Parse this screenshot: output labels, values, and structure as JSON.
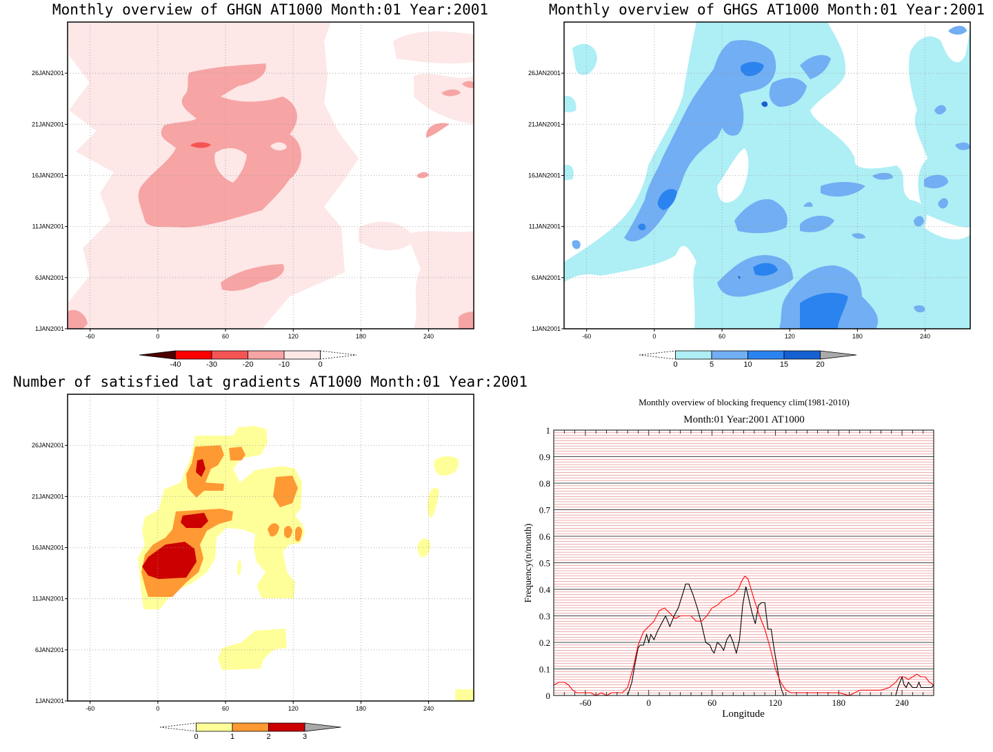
{
  "palettes": {
    "neg": [
      "#4d0000",
      "#ff0000",
      "#f55454",
      "#f7a4a4",
      "#fde7e7"
    ],
    "pos": [
      "#aeeef5",
      "#71aef3",
      "#2b83ef",
      "#1560d0",
      "#aaaaaa"
    ],
    "cnt": [
      "#ffff99",
      "#ff9933",
      "#cc0000",
      "#aaaaaa"
    ]
  },
  "chart_data": [
    {
      "id": "ghgn",
      "type": "heatmap",
      "title": "Monthly overview of GHGN AT1000 Month:01 Year:2001",
      "x_ticks": [
        "-60",
        "0",
        "60",
        "120",
        "180",
        "240"
      ],
      "y_ticks": [
        "1JAN2001",
        "6JAN2001",
        "11JAN2001",
        "16JAN2001",
        "21JAN2001",
        "26JAN2001"
      ],
      "xlim": [
        -80,
        280
      ],
      "ylim": [
        "1JAN2001",
        "31JAN2001"
      ],
      "colorbar": {
        "labels": [
          "-40",
          "-30",
          "-20",
          "-10",
          "0"
        ],
        "colors": [
          "#4d0000",
          "#ff0000",
          "#f55454",
          "#f7a4a4",
          "#fde7e7"
        ]
      }
    },
    {
      "id": "ghgs",
      "type": "heatmap",
      "title": "Monthly overview of GHGS AT1000 Month:01 Year:2001",
      "x_ticks": [
        "-60",
        "0",
        "60",
        "120",
        "180",
        "240"
      ],
      "y_ticks": [
        "1JAN2001",
        "6JAN2001",
        "11JAN2001",
        "16JAN2001",
        "21JAN2001",
        "26JAN2001"
      ],
      "xlim": [
        -80,
        280
      ],
      "ylim": [
        "1JAN2001",
        "31JAN2001"
      ],
      "colorbar": {
        "labels": [
          "0",
          "5",
          "10",
          "15",
          "20"
        ],
        "colors": [
          "#aeeef5",
          "#71aef3",
          "#2b83ef",
          "#1560d0",
          "#aaaaaa"
        ]
      }
    },
    {
      "id": "grad",
      "type": "heatmap",
      "title": "Number of satisfied lat gradients AT1000 Month:01 Year:2001",
      "x_ticks": [
        "-60",
        "0",
        "60",
        "120",
        "180",
        "240"
      ],
      "y_ticks": [
        "1JAN2001",
        "6JAN2001",
        "11JAN2001",
        "16JAN2001",
        "21JAN2001",
        "26JAN2001"
      ],
      "xlim": [
        -80,
        280
      ],
      "ylim": [
        "1JAN2001",
        "31JAN2001"
      ],
      "colorbar": {
        "labels": [
          "0",
          "1",
          "2",
          "3"
        ],
        "colors": [
          "#ffff99",
          "#ff9933",
          "#cc0000",
          "#aaaaaa"
        ]
      }
    },
    {
      "id": "freq",
      "type": "line",
      "title": "Monthly overview of blocking frequency clim(1981-2010)",
      "subtitle": "Month:01 Year:2001  AT1000",
      "xlabel": "Longitude",
      "ylabel": "Frequency(n/month)",
      "xlim": [
        -90,
        270
      ],
      "ylim": [
        0,
        1
      ],
      "x_ticks": [
        "-60",
        "0",
        "60",
        "120",
        "180",
        "240"
      ],
      "y_ticks": [
        "0",
        "0.1",
        "0.2",
        "0.3",
        "0.4",
        "0.5",
        "0.6",
        "0.7",
        "0.8",
        "0.9",
        "1"
      ],
      "grid": true,
      "series": [
        {
          "color": "#000000",
          "x": [
            -90,
            -20,
            -16,
            -13,
            -10,
            -8,
            -5,
            -2,
            0,
            2,
            5,
            8,
            12,
            16,
            20,
            24,
            28,
            32,
            35,
            38,
            42,
            46,
            50,
            54,
            58,
            60,
            62,
            65,
            68,
            71,
            74,
            77,
            80,
            83,
            86,
            89,
            92,
            95,
            98,
            101,
            104,
            107,
            110,
            113,
            116,
            119,
            122,
            124,
            126,
            128,
            234,
            236,
            238,
            240,
            242,
            244,
            246,
            248,
            250,
            252,
            254,
            256,
            258,
            260,
            262,
            264,
            266,
            268,
            270
          ],
          "y": [
            0.0,
            0.0,
            0.05,
            0.12,
            0.18,
            0.19,
            0.19,
            0.23,
            0.2,
            0.23,
            0.21,
            0.24,
            0.27,
            0.3,
            0.26,
            0.3,
            0.33,
            0.38,
            0.42,
            0.42,
            0.38,
            0.33,
            0.27,
            0.2,
            0.19,
            0.17,
            0.16,
            0.2,
            0.19,
            0.17,
            0.21,
            0.23,
            0.2,
            0.16,
            0.21,
            0.34,
            0.41,
            0.36,
            0.31,
            0.27,
            0.34,
            0.35,
            0.35,
            0.25,
            0.25,
            0.17,
            0.1,
            0.05,
            0.02,
            0.0,
            0.0,
            0.03,
            0.05,
            0.07,
            0.04,
            0.03,
            0.05,
            0.04,
            0.03,
            0.03,
            0.03,
            0.05,
            0.03,
            0.03,
            0.03,
            0.03,
            0.03,
            0.03,
            0.04
          ]
        },
        {
          "color": "#ff0000",
          "x": [
            -90,
            -85,
            -80,
            -76,
            -72,
            -68,
            -64,
            -60,
            -55,
            -50,
            -45,
            -40,
            -35,
            -30,
            -25,
            -20,
            -15,
            -10,
            -5,
            0,
            5,
            10,
            15,
            20,
            25,
            30,
            35,
            40,
            45,
            50,
            55,
            60,
            65,
            70,
            75,
            80,
            85,
            88,
            91,
            94,
            97,
            100,
            105,
            110,
            115,
            120,
            125,
            130,
            135,
            140,
            150,
            160,
            170,
            180,
            190,
            200,
            210,
            220,
            228,
            234,
            238,
            242,
            246,
            250,
            254,
            258,
            262,
            266,
            270
          ],
          "y": [
            0.04,
            0.05,
            0.05,
            0.04,
            0.02,
            0.01,
            0.01,
            0.01,
            0.01,
            0.0,
            0.01,
            0.0,
            0.01,
            0.01,
            0.01,
            0.03,
            0.1,
            0.19,
            0.24,
            0.26,
            0.28,
            0.32,
            0.33,
            0.31,
            0.29,
            0.3,
            0.3,
            0.3,
            0.28,
            0.28,
            0.3,
            0.33,
            0.34,
            0.36,
            0.37,
            0.38,
            0.4,
            0.43,
            0.45,
            0.44,
            0.4,
            0.36,
            0.3,
            0.25,
            0.18,
            0.1,
            0.05,
            0.02,
            0.01,
            0.01,
            0.01,
            0.01,
            0.01,
            0.01,
            0.0,
            0.02,
            0.02,
            0.02,
            0.03,
            0.05,
            0.07,
            0.07,
            0.06,
            0.07,
            0.08,
            0.07,
            0.07,
            0.05,
            0.04
          ]
        }
      ]
    }
  ]
}
